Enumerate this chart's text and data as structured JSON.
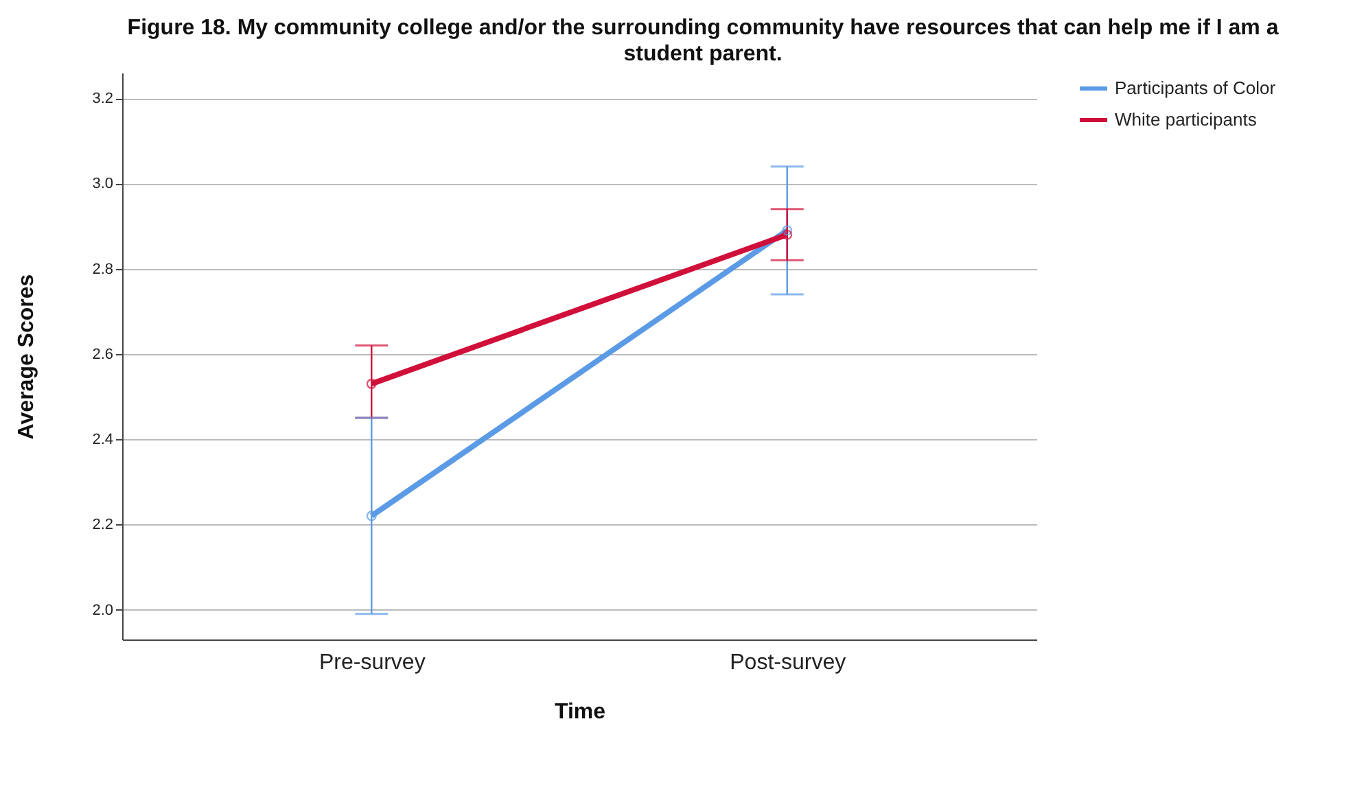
{
  "chart_data": {
    "type": "line",
    "title": "Figure 18. My community college and/or the surrounding community have resources that can help me if I am a student parent.",
    "xlabel": "Time",
    "ylabel": "Average Scores",
    "categories": [
      "Pre-survey",
      "Post-survey"
    ],
    "series": [
      {
        "name": "Participants of Color",
        "color": "#5b9be6",
        "values": [
          2.22,
          2.89
        ],
        "errors": [
          [
            1.99,
            2.45
          ],
          [
            2.74,
            3.04
          ]
        ]
      },
      {
        "name": "White participants",
        "color": "#d0103a",
        "values": [
          2.53,
          2.88
        ],
        "errors": [
          [
            2.45,
            2.62
          ],
          [
            2.82,
            2.94
          ]
        ]
      }
    ],
    "ylim": [
      1.93,
      3.26
    ],
    "yticks": [
      {
        "value": 2,
        "label": "2.0"
      },
      2.2,
      2.4,
      2.6,
      2.8,
      {
        "value": 3,
        "label": "3.0"
      },
      3.2
    ],
    "grid": "y",
    "legend": "top right",
    "marker": "circle",
    "line_style": "solid"
  }
}
